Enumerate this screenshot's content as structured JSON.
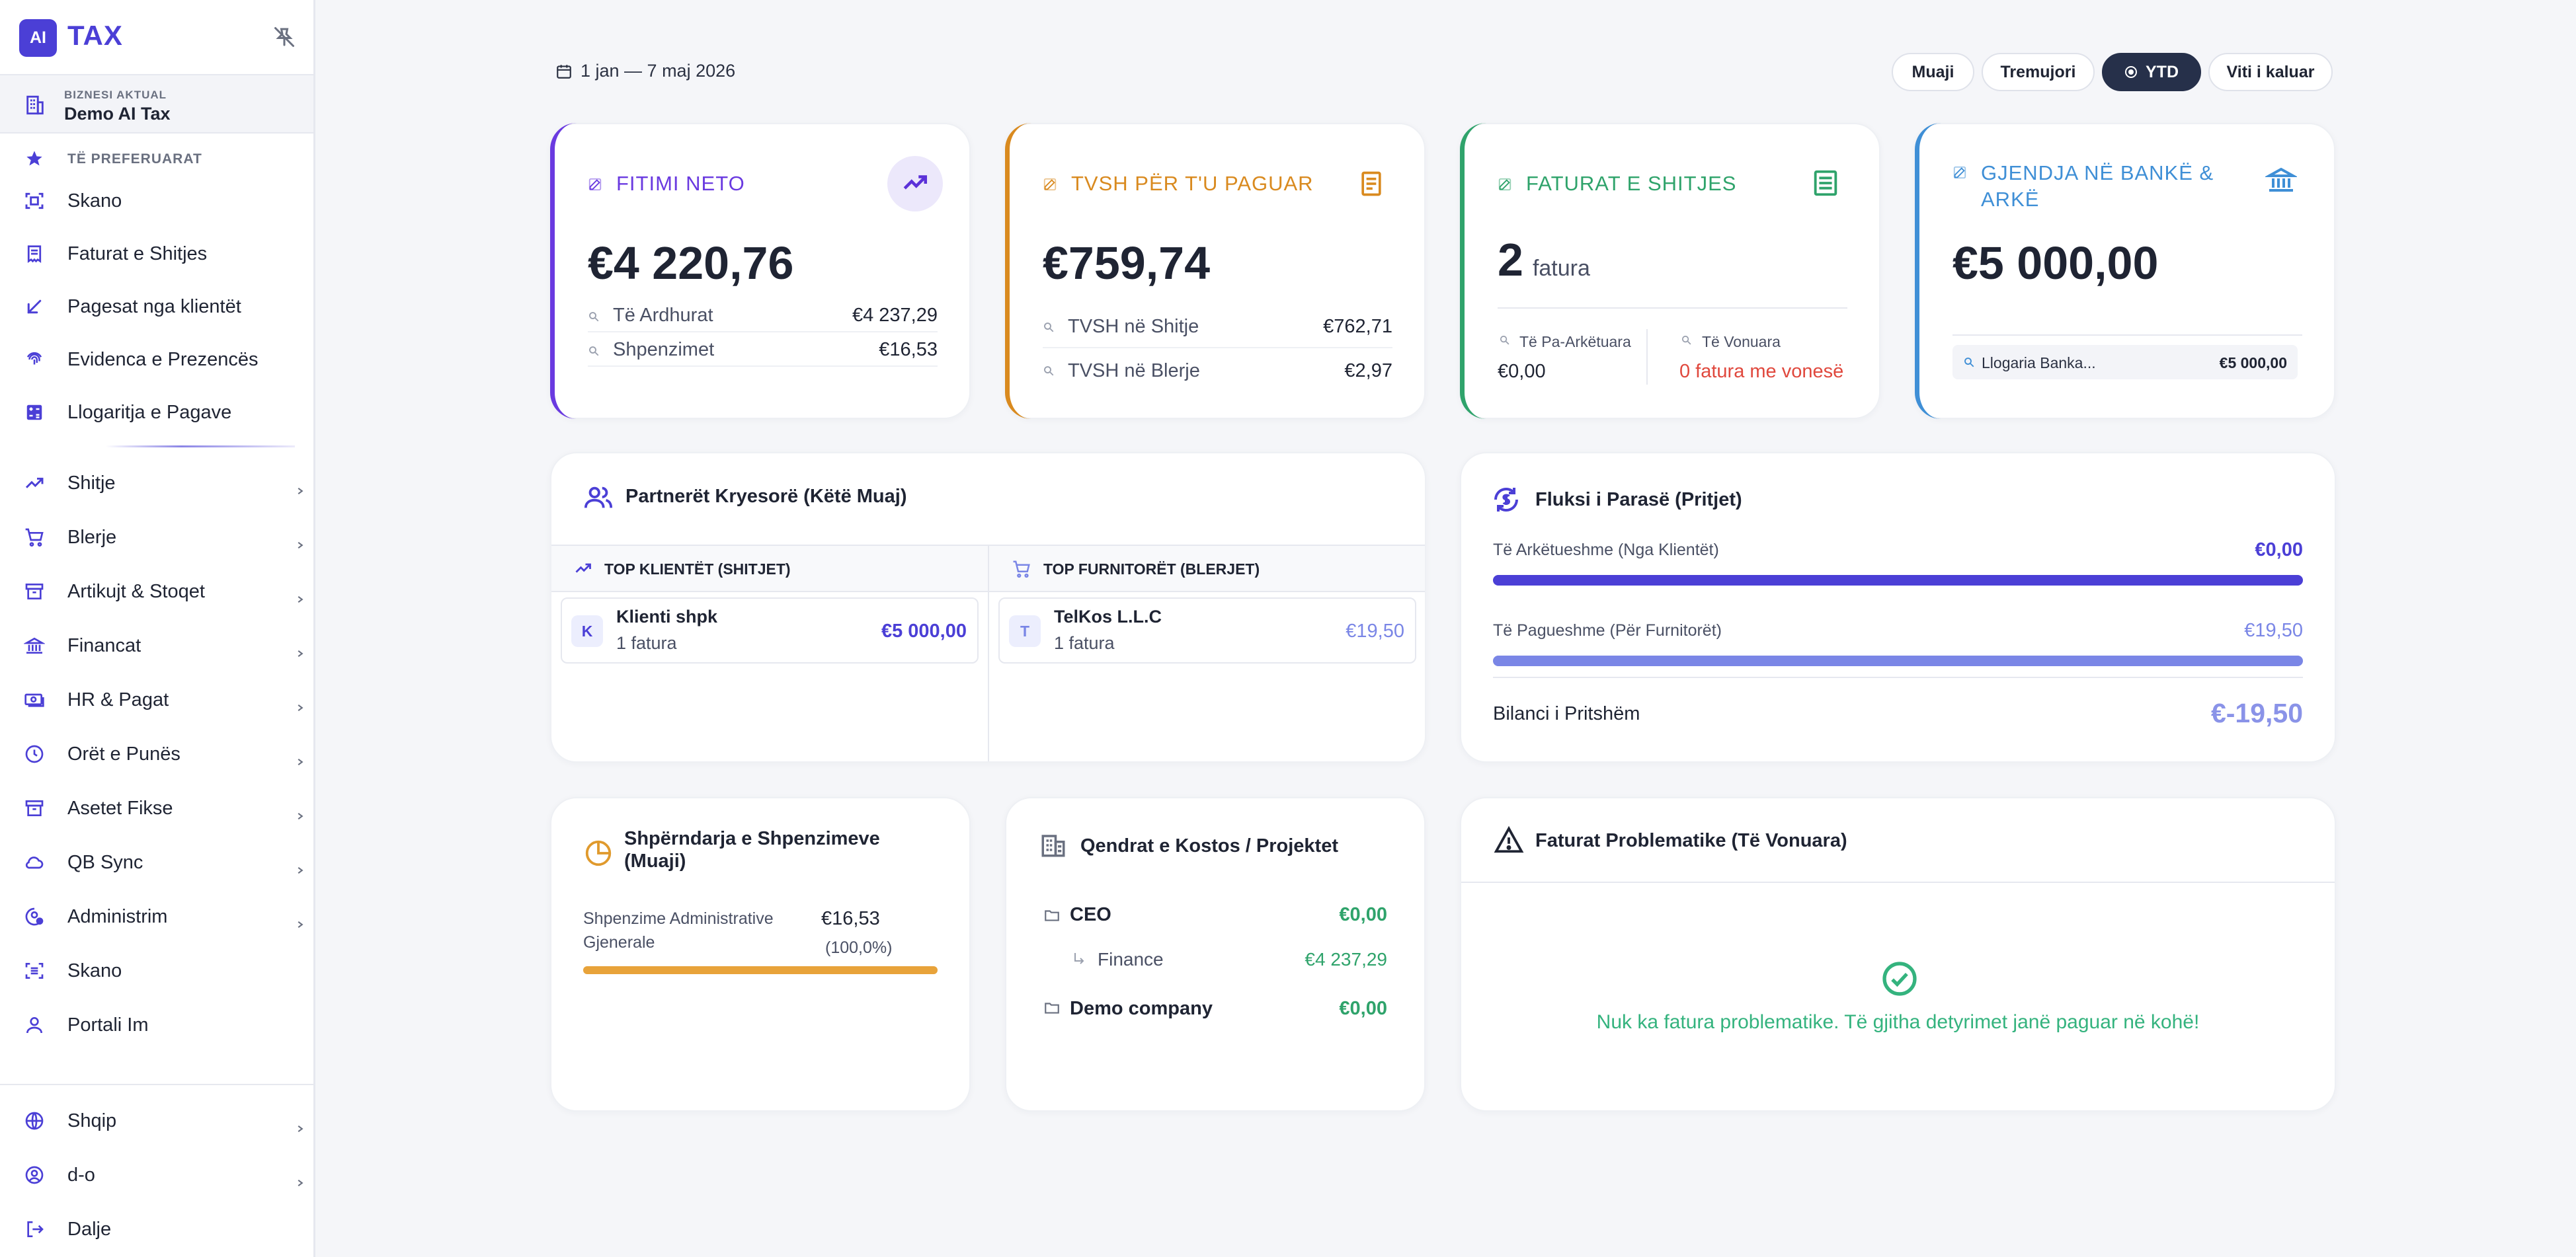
{
  "brand": {
    "logo_initials": "AI",
    "name": "TAX"
  },
  "business": {
    "caption": "BIZNESI AKTUAL",
    "name": "Demo AI Tax"
  },
  "favorites": {
    "heading": "TË PREFERUARAT",
    "items": [
      {
        "label": "Skano",
        "icon": "scan-icon"
      },
      {
        "label": "Faturat e Shitjes",
        "icon": "receipt-icon"
      },
      {
        "label": "Pagesat nga klientët",
        "icon": "arrow-down-left-icon"
      },
      {
        "label": "Evidenca e Prezencës",
        "icon": "fingerprint-icon"
      },
      {
        "label": "Llogaritja e Pagave",
        "icon": "calculator-icon"
      }
    ]
  },
  "nav": [
    {
      "label": "Shitje",
      "icon": "trending-up-icon"
    },
    {
      "label": "Blerje",
      "icon": "cart-icon"
    },
    {
      "label": "Artikujt & Stoqet",
      "icon": "archive-icon"
    },
    {
      "label": "Financat",
      "icon": "bank-icon"
    },
    {
      "label": "HR & Pagat",
      "icon": "cash-icon"
    },
    {
      "label": "Orët e Punës",
      "icon": "clock-icon"
    },
    {
      "label": "Asetet Fikse",
      "icon": "box-icon"
    },
    {
      "label": "QB Sync",
      "icon": "cloud-icon"
    },
    {
      "label": "Administrim",
      "icon": "user-gear-icon"
    }
  ],
  "nav_plain": [
    {
      "label": "Skano",
      "icon": "scan-icon"
    },
    {
      "label": "Portali Im",
      "icon": "user-icon"
    }
  ],
  "bottom_nav": [
    {
      "label": "Shqip",
      "icon": "globe-icon"
    },
    {
      "label": "d-o",
      "icon": "user-circle-icon"
    },
    {
      "label": "Dalje",
      "icon": "logout-icon"
    }
  ],
  "header": {
    "date_range": "1 jan — 7 maj 2026",
    "periods": [
      "Muaji",
      "Tremujori",
      "YTD",
      "Viti i kaluar"
    ],
    "active_period": "YTD"
  },
  "kpis": {
    "profit": {
      "title": "FITIMI NETO",
      "value": "€4 220,76",
      "rows": [
        {
          "label": "Të Ardhurat",
          "value": "€4 237,29"
        },
        {
          "label": "Shpenzimet",
          "value": "€16,53"
        }
      ],
      "color": "#6a3ae0"
    },
    "vat": {
      "title": "TVSH PËR T'U PAGUAR",
      "value": "€759,74",
      "rows": [
        {
          "label": "TVSH në Shitje",
          "value": "€762,71"
        },
        {
          "label": "TVSH në Blerje",
          "value": "€2,97"
        }
      ],
      "color": "#d98a1f"
    },
    "invoices": {
      "title": "FATURAT E SHITJES",
      "count": "2",
      "unit": "fatura",
      "unpaid_label": "Të Pa-Arkëtuara",
      "unpaid_value": "€0,00",
      "late_label": "Të Vonuara",
      "late_value": "0 fatura me vonesë",
      "color": "#2fa36b"
    },
    "bank": {
      "title": "GJENDJA NË BANKË & ARKË",
      "value": "€5 000,00",
      "account_label": "Llogaria Banka...",
      "account_value": "€5 000,00",
      "color": "#3f8fd6"
    }
  },
  "partners": {
    "title": "Partnerët Kryesorë (Këtë Muaj)",
    "clients_head": "TOP KLIENTËT (SHITJET)",
    "suppliers_head": "TOP FURNITORËT (BLERJET)",
    "client": {
      "initial": "K",
      "name": "Klienti shpk",
      "sub": "1 fatura",
      "amount": "€5 000,00"
    },
    "supplier": {
      "initial": "T",
      "name": "TelKos L.L.C",
      "sub": "1 fatura",
      "amount": "€19,50"
    }
  },
  "cashflow": {
    "title": "Fluksi i Parasë (Pritjet)",
    "receivable_label": "Të Arkëtueshme (Nga Klientët)",
    "receivable_value": "€0,00",
    "payable_label": "Të Pagueshme (Për Furnitorët)",
    "payable_value": "€19,50",
    "balance_label": "Bilanci i Pritshëm",
    "balance_value": "€-19,50",
    "receivable_fill": 1.0,
    "payable_fill": 1.0
  },
  "expenses": {
    "title": "Shpërndarja e Shpenzimeve (Muaji)",
    "category": "Shpenzime Administrative Gjenerale",
    "amount": "€16,53",
    "percent": "(100,0%)",
    "fill": 1.0
  },
  "costcenters": {
    "title": "Qendrat e Kostos / Projektet",
    "items": [
      {
        "name": "CEO",
        "value": "€0,00"
      },
      {
        "name": "Finance",
        "value": "€4 237,29"
      },
      {
        "name": "Demo company",
        "value": "€0,00"
      }
    ]
  },
  "problems": {
    "title": "Faturat Problematike (Të Vonuara)",
    "message": "Nuk ka fatura problematike. Të gjitha detyrimet janë paguar në kohë!"
  }
}
